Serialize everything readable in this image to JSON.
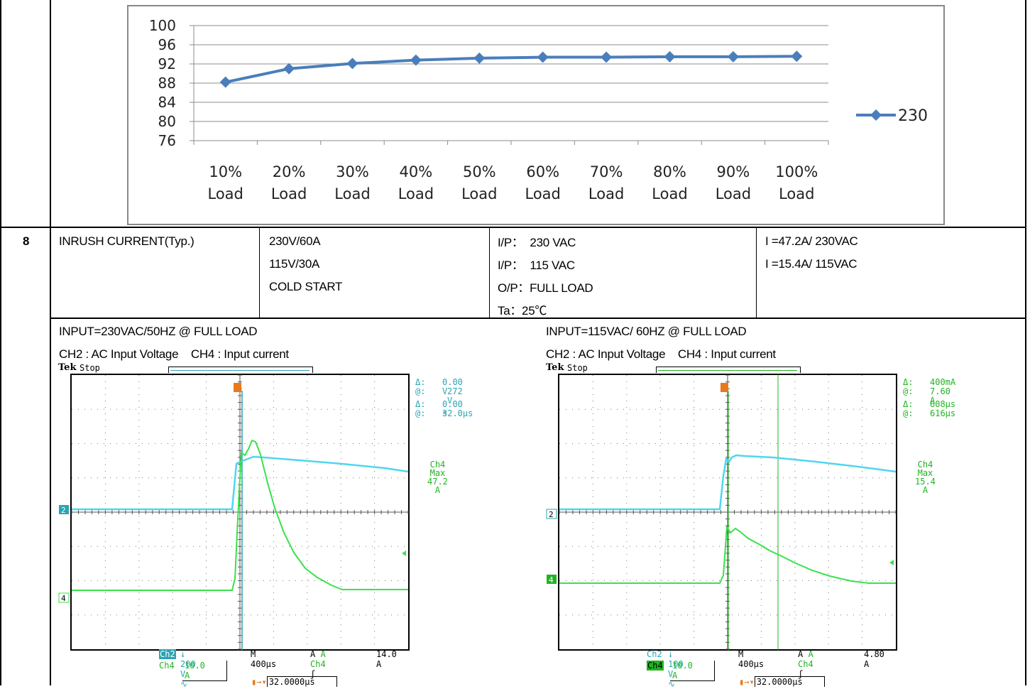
{
  "efficiency_chart": {
    "chart_data": {
      "type": "line",
      "categories": [
        "10%\nLoad",
        "20%\nLoad",
        "30%\nLoad",
        "40%\nLoad",
        "50%\nLoad",
        "60%\nLoad",
        "70%\nLoad",
        "80%\nLoad",
        "90%\nLoad",
        "100%\nLoad"
      ],
      "series": [
        {
          "name": "230",
          "values": [
            88.2,
            91.0,
            92.1,
            92.8,
            93.2,
            93.4,
            93.4,
            93.5,
            93.5,
            93.6
          ]
        }
      ],
      "yticks": [
        "100",
        "96",
        "92",
        "88",
        "84",
        "80",
        "76"
      ],
      "ylim": [
        76,
        100
      ],
      "grid": true,
      "legend": "right",
      "color": "#4a7ebb"
    }
  },
  "inrush_row": {
    "number": "8",
    "item": "INRUSH CURRENT(Typ.)",
    "conditions": [
      "230V/60A",
      "115V/30A",
      "COLD START"
    ],
    "test": [
      "I/P：  230 VAC",
      "I/P：  115 VAC",
      "O/P：FULL LOAD",
      "Ta：25℃"
    ],
    "result": [
      "I =47.2A/ 230VAC",
      "I =15.4A/ 115VAC"
    ]
  },
  "scope_left": {
    "title": "INPUT=230VAC/50HZ @ FULL LOAD",
    "subtitle": "CH2 : AC Input Voltage    CH4 : Input current",
    "brand": "Tek",
    "state": "Stop",
    "ch2_marker": "2",
    "ch4_marker": "4",
    "meas": {
      "d1": "Δ:",
      "v1": "0.00 V",
      "a1": "@:",
      "v2": "272 V",
      "d2": "Δ:",
      "v3": "0.00 s",
      "a2": "@:",
      "v4": "32.0µs"
    },
    "max_label": "Ch4 Max",
    "max_value": "47.2 A",
    "ch2_box": "Ch2",
    "ch2_scale": "200 V",
    "ch4_box": "Ch4",
    "ch4_scale": "10.0 A",
    "timebase": "M 400µs",
    "trig": "A  Ch4",
    "trig_level": "14.0 A",
    "trig_pos": "32.0000µs"
  },
  "scope_right": {
    "title": "INPUT=115VAC/ 60HZ @ FULL LOAD",
    "subtitle": "CH2 : AC Input Voltage    CH4 : Input current",
    "brand": "Tek",
    "state": "Stop",
    "ch2_marker": "2",
    "ch4_marker": "4",
    "meas": {
      "d1": "Δ:",
      "v1": "400mA",
      "a1": "@:",
      "v2": "7.60 A",
      "d2": "Δ:",
      "v3": "608µs",
      "a2": "@:",
      "v4": "616µs"
    },
    "max_label": "Ch4 Max",
    "max_value": "15.4 A",
    "ch2_box": "Ch2",
    "ch2_scale": "100 V",
    "ch4_box": "Ch4",
    "ch4_scale": "10.0 A",
    "timebase": "M 400µs",
    "trig": "A  Ch4",
    "trig_level": "4.80 A",
    "trig_pos": "32.0000µs"
  },
  "colors": {
    "ch2": "#4fd6f0",
    "ch4": "#39e24a",
    "cursor": "#2aa4b4",
    "cursor_right": "#1fb520",
    "trigger": "#e87a1e"
  }
}
